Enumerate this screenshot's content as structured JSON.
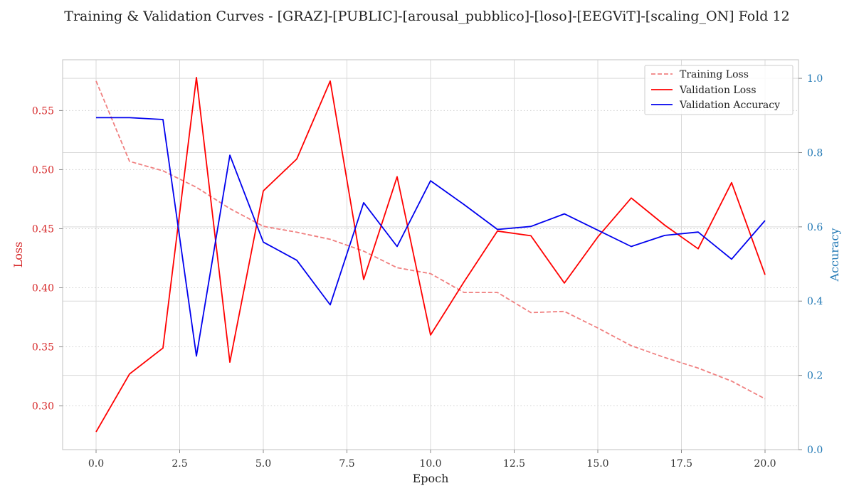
{
  "chart_data": {
    "type": "line",
    "title": "Training & Validation Curves - [GRAZ]-[PUBLIC]-[arousal_pubblico]-[loso]-[EEGViT]-[scaling_ON] Fold 12",
    "xlabel": "Epoch",
    "ylabel_left": "Loss",
    "ylabel_right": "Accuracy",
    "xlim": [
      -1,
      21
    ],
    "ylim_left": [
      0.263,
      0.593
    ],
    "ylim_right": [
      0.0,
      1.05
    ],
    "xticks": [
      "0.0",
      "2.5",
      "5.0",
      "7.5",
      "10.0",
      "12.5",
      "15.0",
      "17.5",
      "20.0"
    ],
    "yticks_left": [
      "0.30",
      "0.35",
      "0.40",
      "0.45",
      "0.50",
      "0.55"
    ],
    "yticks_right": [
      "0.0",
      "0.2",
      "0.4",
      "0.6",
      "0.8",
      "1.0"
    ],
    "grid": true,
    "legend_position": "top-right",
    "x": [
      0,
      1,
      2,
      3,
      4,
      5,
      6,
      7,
      8,
      9,
      10,
      11,
      12,
      13,
      14,
      15,
      16,
      17,
      18,
      19,
      20
    ],
    "series": [
      {
        "name": "Training Loss",
        "axis": "left",
        "style": "dashed",
        "color": "#f08080",
        "values": [
          0.575,
          0.507,
          0.499,
          0.485,
          0.467,
          0.452,
          0.447,
          0.441,
          0.431,
          0.417,
          0.412,
          0.396,
          0.396,
          0.379,
          0.38,
          0.366,
          0.351,
          0.341,
          0.332,
          0.321,
          0.306
        ]
      },
      {
        "name": "Validation Loss",
        "axis": "left",
        "style": "solid",
        "color": "#ff0000",
        "values": [
          0.278,
          0.327,
          0.349,
          0.578,
          0.337,
          0.482,
          0.509,
          0.575,
          0.407,
          0.494,
          0.36,
          0.405,
          0.448,
          0.444,
          0.404,
          0.443,
          0.476,
          0.453,
          0.433,
          0.489,
          0.411
        ]
      },
      {
        "name": "Validation Accuracy",
        "axis": "right",
        "style": "solid",
        "color": "#0000ee",
        "values": [
          0.894,
          0.894,
          0.889,
          0.252,
          0.793,
          0.559,
          0.51,
          0.39,
          0.665,
          0.547,
          0.724,
          0.66,
          0.593,
          0.601,
          0.635,
          0.591,
          0.547,
          0.577,
          0.586,
          0.513,
          0.617
        ]
      }
    ]
  }
}
